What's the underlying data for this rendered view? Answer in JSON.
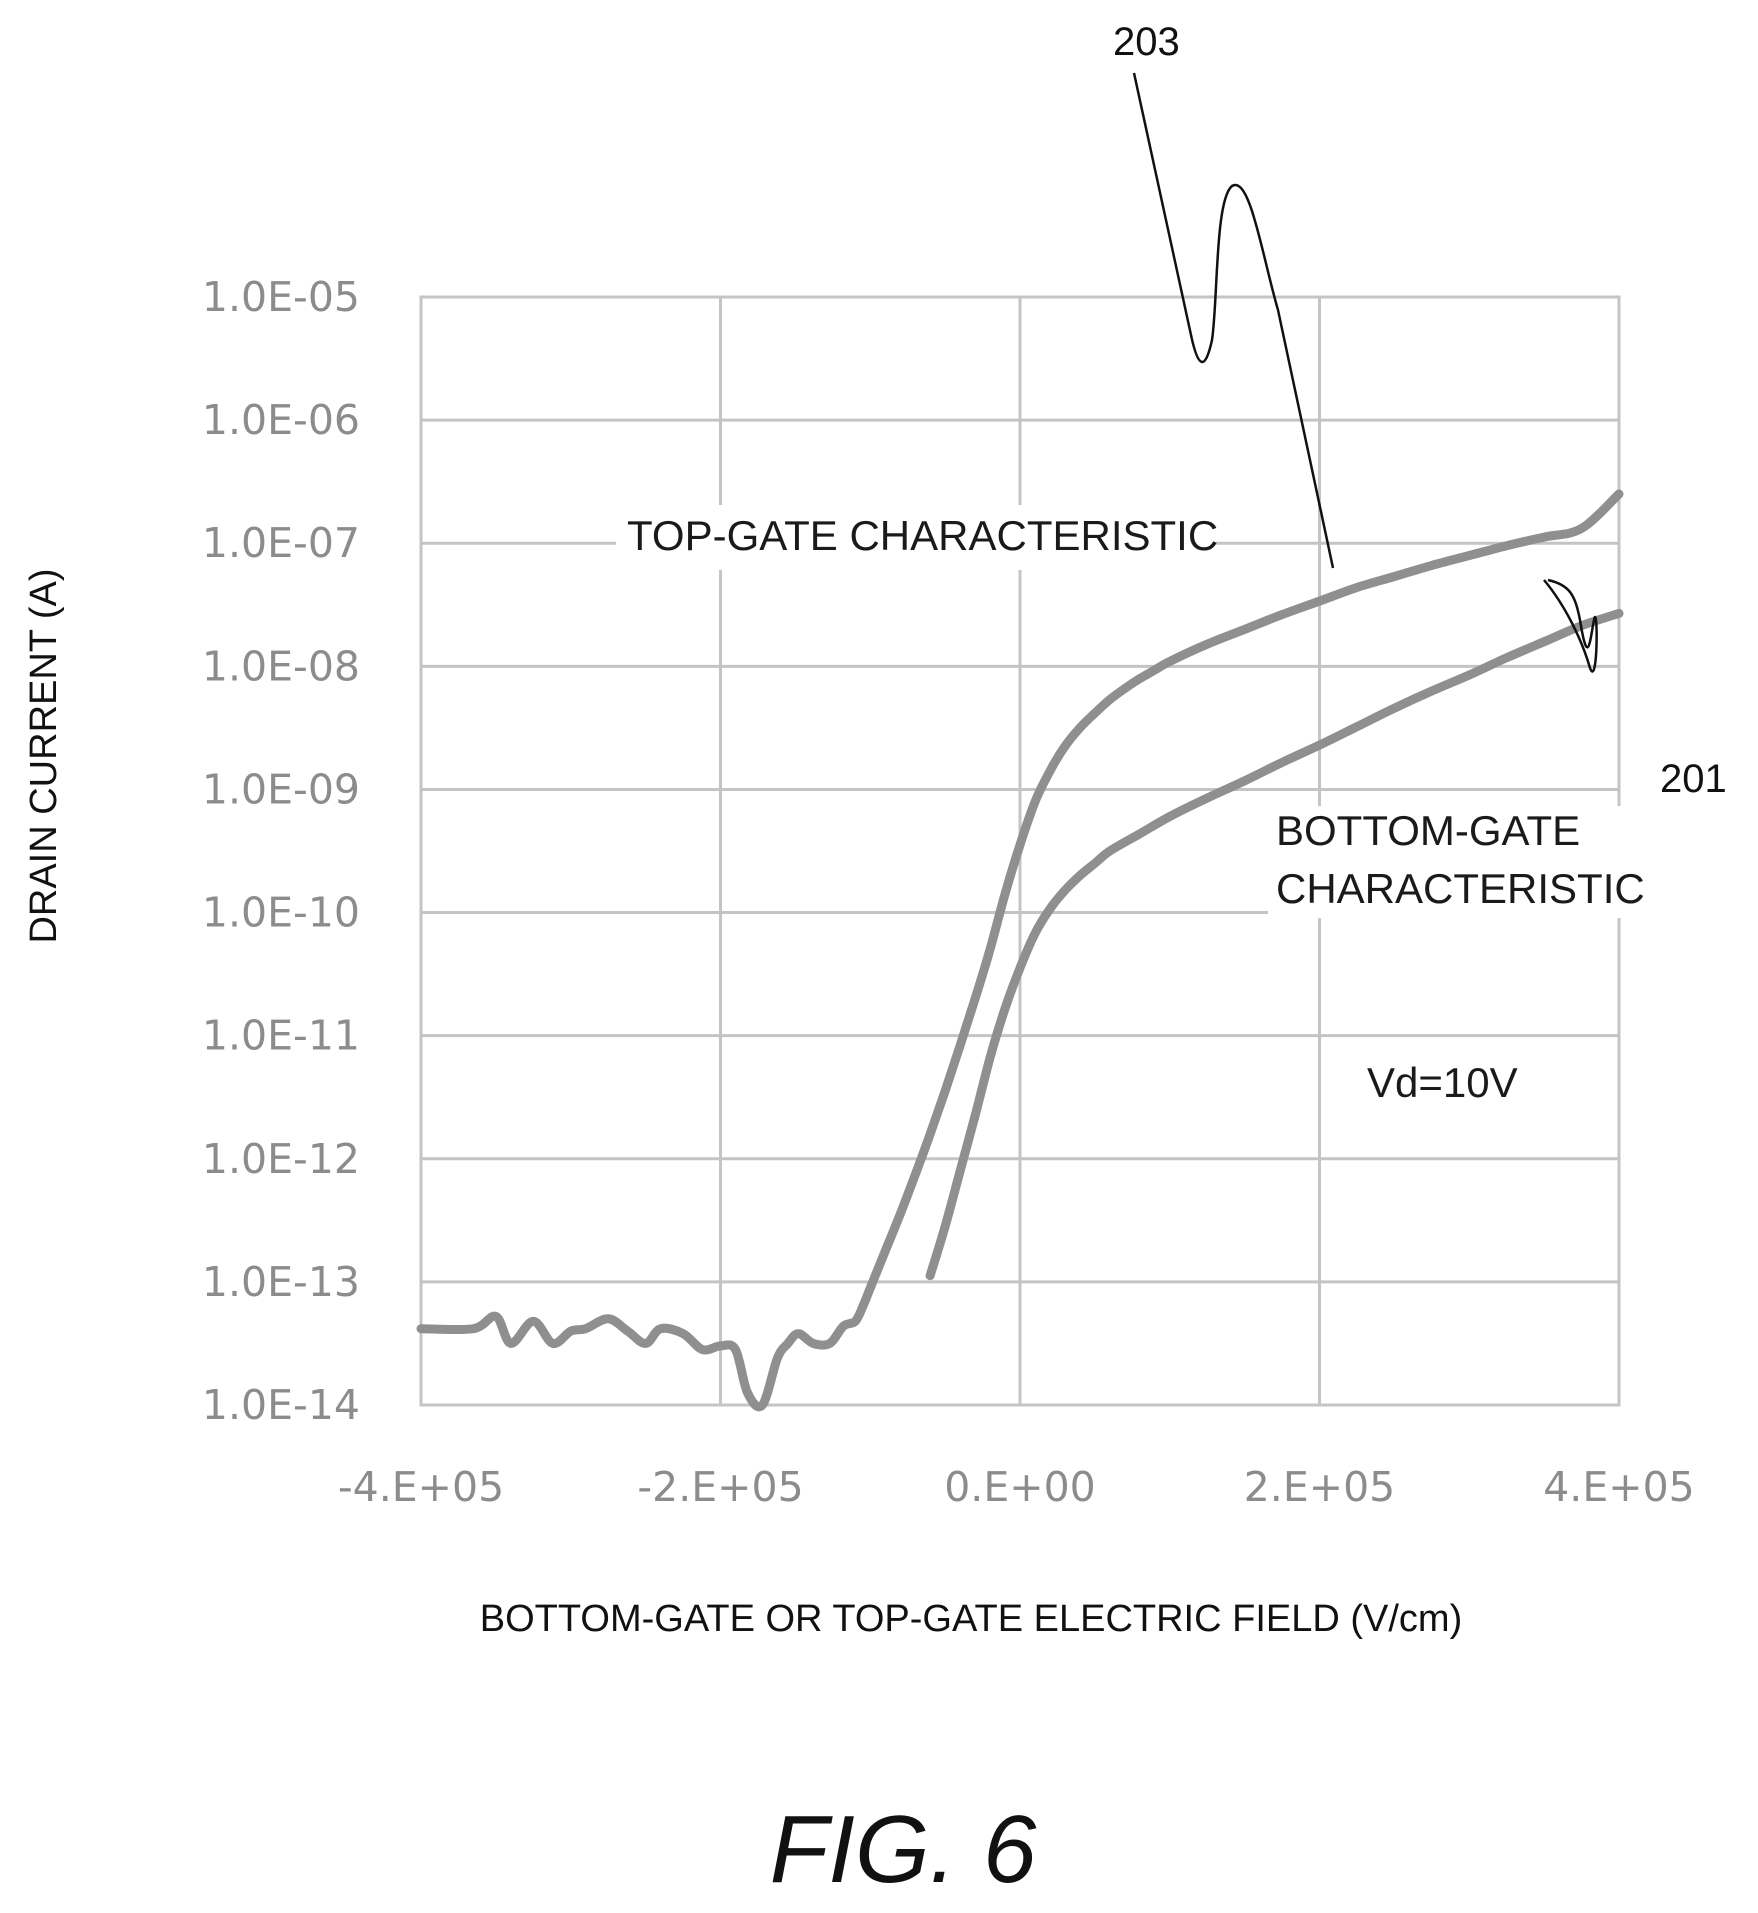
{
  "chart_data": {
    "type": "line",
    "title": "",
    "xlabel": "BOTTOM-GATE OR TOP-GATE ELECTRIC FIELD (V/cm)",
    "ylabel": "DRAIN CURRENT (A)",
    "xlim": [
      -400000,
      400000
    ],
    "ylim_exponent": [
      -14,
      -5
    ],
    "yscale": "log",
    "grid": true,
    "x_ticks": [
      -400000,
      -200000,
      0,
      200000,
      400000
    ],
    "x_tick_labels": [
      "-4.E+05",
      "-2.E+05",
      "0.E+00",
      "2.E+05",
      "4.E+05"
    ],
    "y_ticks_exponent": [
      -5,
      -6,
      -7,
      -8,
      -9,
      -10,
      -11,
      -12,
      -13,
      -14
    ],
    "y_tick_labels": [
      "1.0E-05",
      "1.0E-06",
      "1.0E-07",
      "1.0E-08",
      "1.0E-09",
      "1.0E-10",
      "1.0E-11",
      "1.0E-12",
      "1.0E-13",
      "1.0E-14"
    ],
    "series": [
      {
        "id": "203",
        "x": [
          -400000,
          -365000,
          -350000,
          -340000,
          -325000,
          -312000,
          -300000,
          -290000,
          -275000,
          -262000,
          -250000,
          -240000,
          -225000,
          -212000,
          -200000,
          -190000,
          -182000,
          -172000,
          -162000,
          -155000,
          -148000,
          -138000,
          -127000,
          -118000,
          -110000,
          -105000,
          -100000,
          -90000,
          -80000,
          -70000,
          -60000,
          -50000,
          -40000,
          -30000,
          -20000,
          -10000,
          0,
          10000,
          20000,
          30000,
          40000,
          50000,
          60000,
          70000,
          80000,
          90000,
          100000,
          125000,
          150000,
          175000,
          200000,
          225000,
          250000,
          275000,
          300000,
          325000,
          350000,
          375000,
          400000
        ],
        "y_exponent": [
          -13.38,
          -13.38,
          -13.28,
          -13.5,
          -13.32,
          -13.5,
          -13.4,
          -13.38,
          -13.3,
          -13.4,
          -13.5,
          -13.38,
          -13.42,
          -13.55,
          -13.52,
          -13.55,
          -13.9,
          -14.0,
          -13.62,
          -13.5,
          -13.42,
          -13.5,
          -13.5,
          -13.36,
          -13.32,
          -13.2,
          -13.05,
          -12.75,
          -12.45,
          -12.13,
          -11.8,
          -11.45,
          -11.08,
          -10.7,
          -10.3,
          -9.85,
          -9.45,
          -9.1,
          -8.85,
          -8.65,
          -8.5,
          -8.38,
          -8.27,
          -8.18,
          -8.1,
          -8.03,
          -7.96,
          -7.82,
          -7.7,
          -7.58,
          -7.47,
          -7.36,
          -7.27,
          -7.18,
          -7.1,
          -7.02,
          -6.95,
          -6.88,
          -6.6
        ]
      },
      {
        "id": "201",
        "x": [
          -60000,
          -50000,
          -40000,
          -30000,
          -20000,
          -10000,
          0,
          10000,
          20000,
          30000,
          40000,
          50000,
          60000,
          80000,
          100000,
          125000,
          150000,
          175000,
          200000,
          225000,
          250000,
          275000,
          300000,
          325000,
          350000,
          375000,
          400000
        ],
        "y_exponent": [
          -12.95,
          -12.55,
          -12.1,
          -11.65,
          -11.18,
          -10.78,
          -10.45,
          -10.17,
          -9.97,
          -9.82,
          -9.7,
          -9.6,
          -9.5,
          -9.36,
          -9.22,
          -9.07,
          -8.93,
          -8.78,
          -8.64,
          -8.49,
          -8.34,
          -8.2,
          -8.07,
          -7.93,
          -7.8,
          -7.67,
          -7.57
        ]
      }
    ],
    "annotations": {
      "top_gate": "TOP-GATE CHARACTERISTIC",
      "bottom_gate_line1": "BOTTOM-GATE",
      "bottom_gate_line2": "CHARACTERISTIC",
      "vd": "Vd=10V",
      "ref_203": "203",
      "ref_201": "201"
    }
  },
  "figure_label": "FIG. 6",
  "colors": {
    "series": "#8f8f8f",
    "grid": "#c4c4c4",
    "tick_text": "#8c8c8c",
    "text": "#111111"
  }
}
